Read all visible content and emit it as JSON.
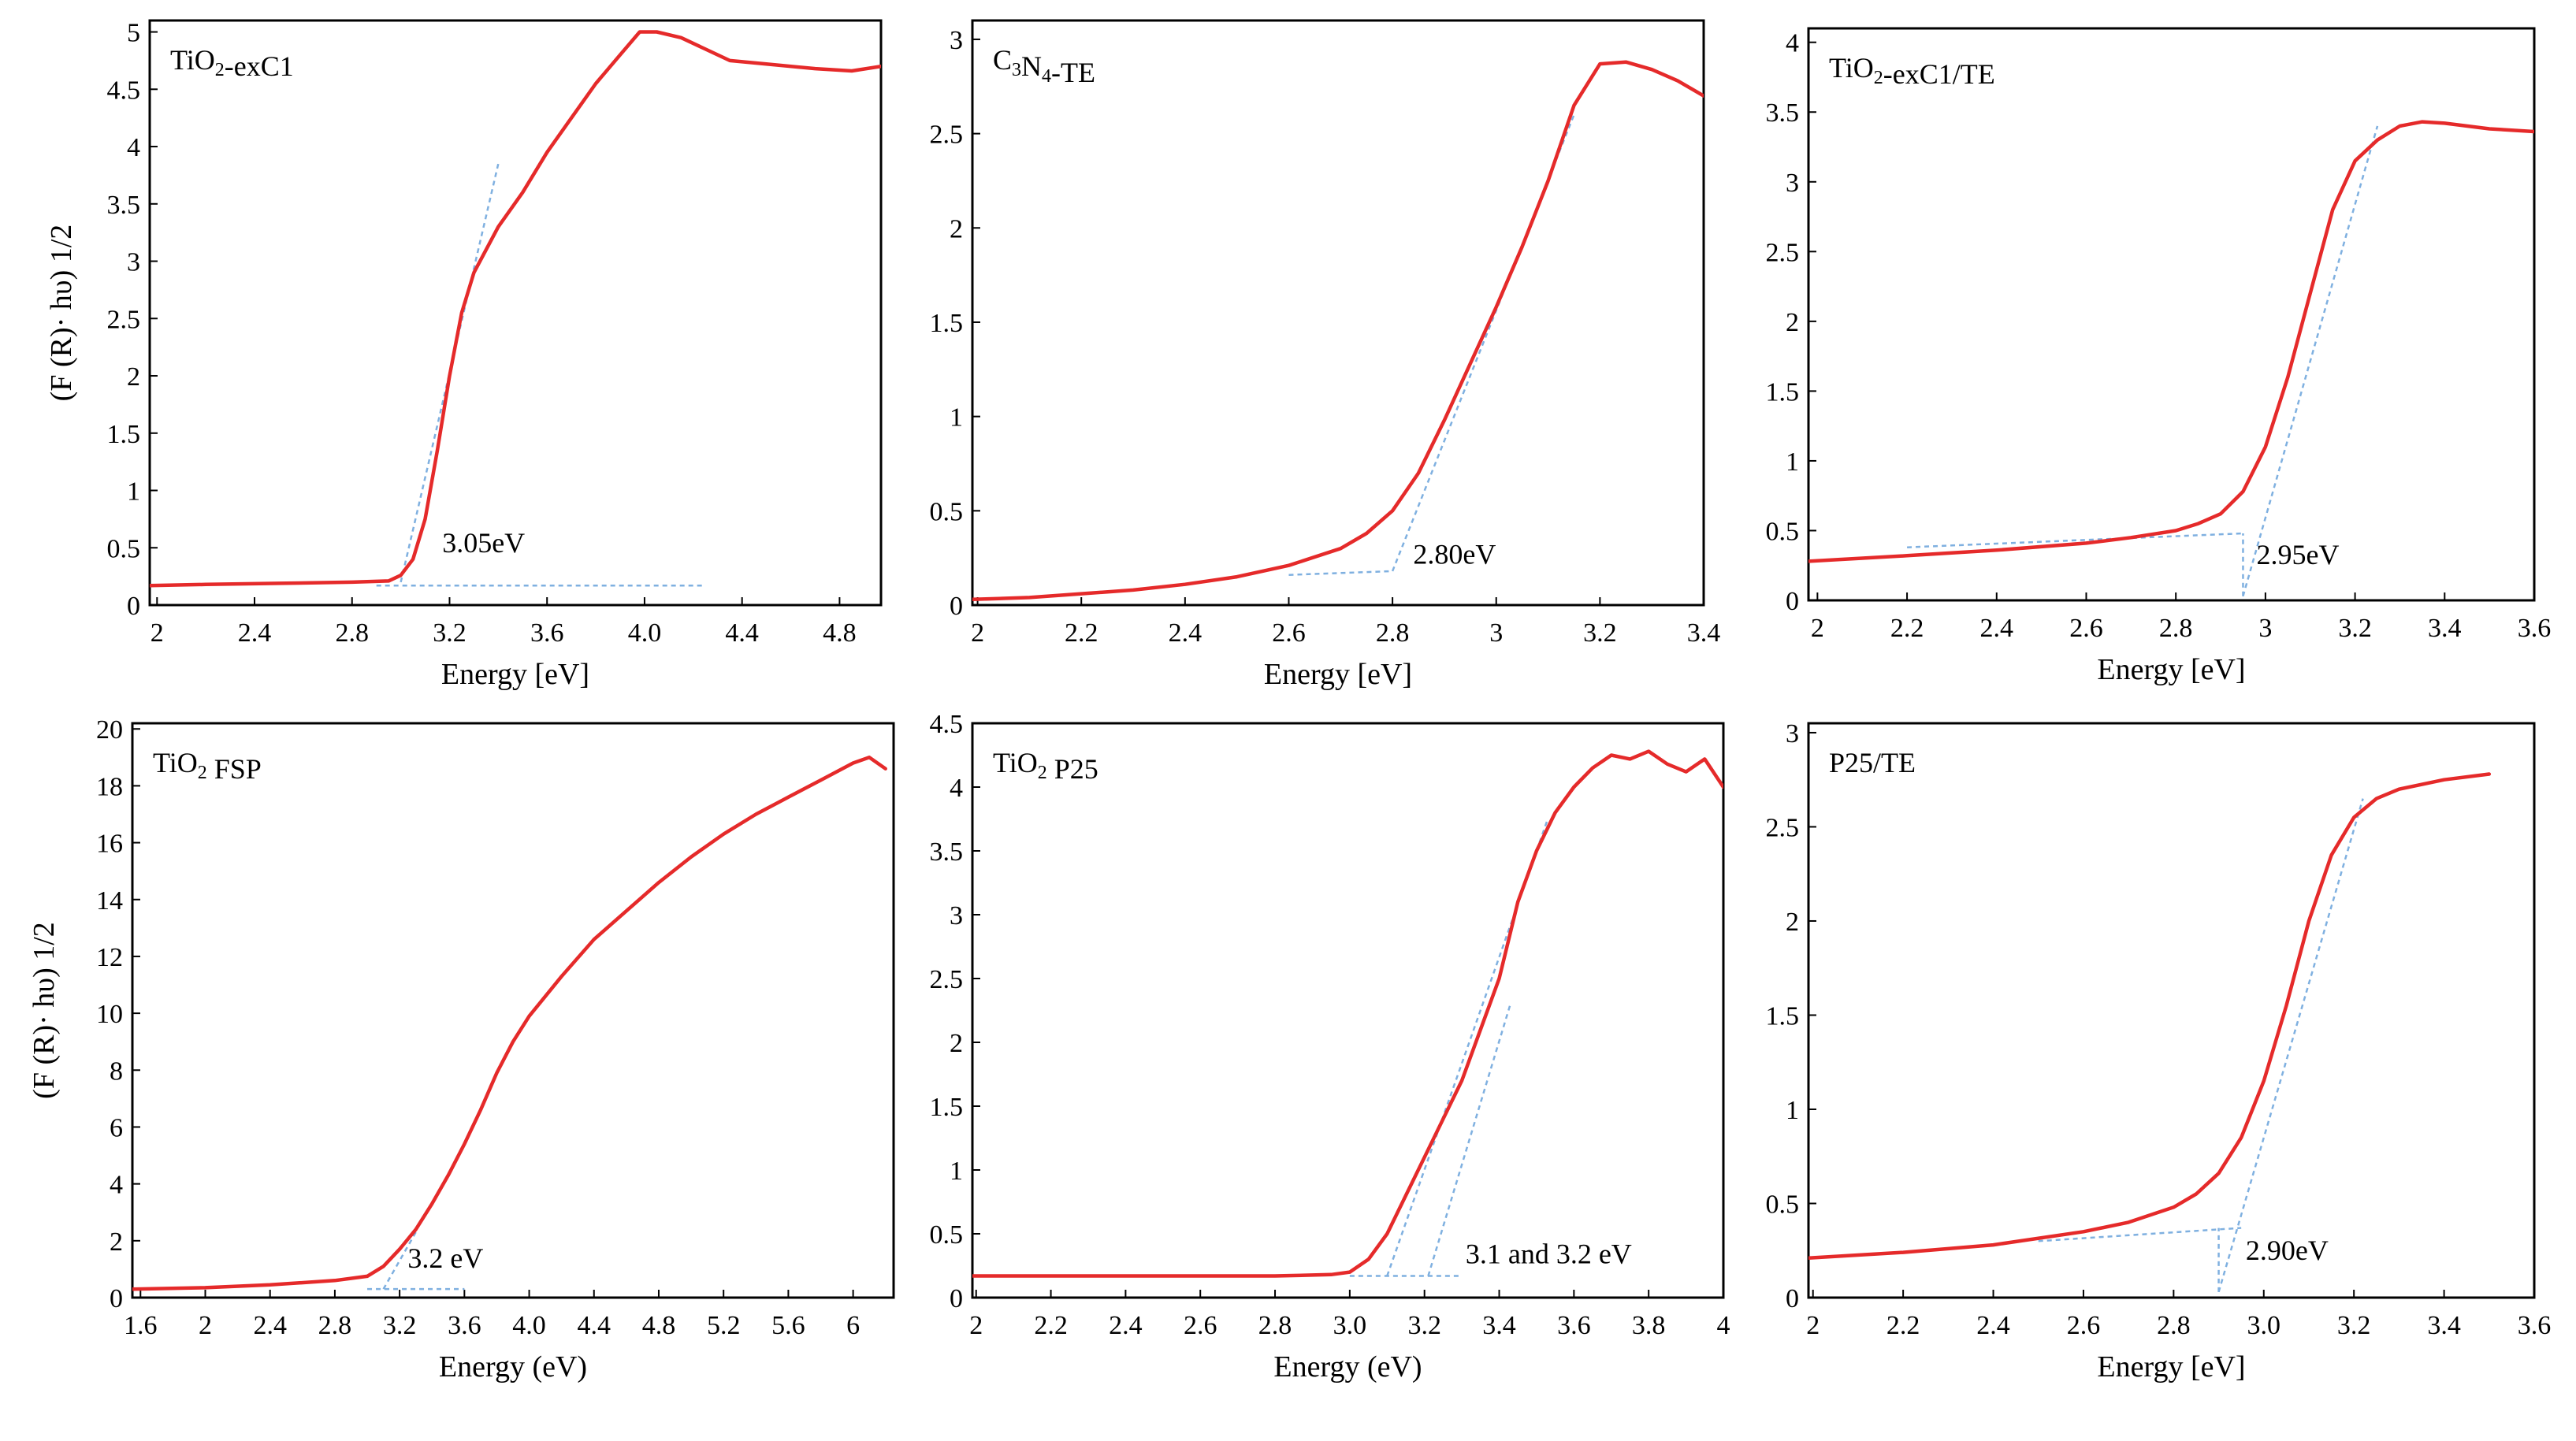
{
  "colors": {
    "curve": "#e52a2a",
    "guide": "#7fb0e0",
    "axes": "#000000"
  },
  "chart_data": [
    {
      "type": "line",
      "title": "TiO2-exC1",
      "title_parts": [
        {
          "t": "TiO"
        },
        {
          "t": "2",
          "sub": true
        },
        {
          "t": "-exC1"
        }
      ],
      "xlabel": "Energy [eV]",
      "ylabel": "(F (R)· hυ) 1/2",
      "xlim": [
        1.97,
        4.97
      ],
      "ylim": [
        0,
        5.1
      ],
      "xticks": [
        2,
        2.4,
        2.8,
        3.2,
        3.6,
        4.0,
        4.4,
        4.8
      ],
      "xtick_labels": [
        "2",
        "2.4",
        "2.8",
        "3.2",
        "3.6",
        "4.0",
        "4.4",
        "4.8"
      ],
      "yticks": [
        0,
        0.5,
        1,
        1.5,
        2,
        2.5,
        3,
        3.5,
        4,
        4.5,
        5
      ],
      "ytick_labels": [
        "0",
        "0.5",
        "1",
        "1.5",
        "2",
        "2.5",
        "3",
        "3.5",
        "4",
        "4.5",
        "5"
      ],
      "series": [
        {
          "name": "TiO2-exC1",
          "x": [
            1.97,
            2.2,
            2.5,
            2.8,
            2.95,
            3.0,
            3.05,
            3.1,
            3.15,
            3.2,
            3.25,
            3.3,
            3.4,
            3.5,
            3.6,
            3.7,
            3.8,
            3.9,
            3.98,
            4.05,
            4.15,
            4.25,
            4.35,
            4.5,
            4.7,
            4.85,
            4.97
          ],
          "y": [
            0.17,
            0.18,
            0.19,
            0.2,
            0.21,
            0.26,
            0.4,
            0.75,
            1.35,
            2.0,
            2.55,
            2.9,
            3.3,
            3.6,
            3.95,
            4.25,
            4.55,
            4.8,
            5.0,
            5.0,
            4.95,
            4.85,
            4.75,
            4.72,
            4.68,
            4.66,
            4.7
          ]
        }
      ],
      "guides": [
        {
          "x": [
            3.0,
            3.4
          ],
          "y": [
            0.2,
            3.85
          ]
        },
        {
          "x": [
            2.9,
            4.25
          ],
          "y": [
            0.17,
            0.17
          ]
        }
      ],
      "annotations": [
        {
          "text": "3.05eV",
          "x": 3.17,
          "y": 0.46
        }
      ]
    },
    {
      "type": "line",
      "title": "C3N4-TE",
      "title_parts": [
        {
          "t": "C"
        },
        {
          "t": "3",
          "sub": true
        },
        {
          "t": "N"
        },
        {
          "t": "4",
          "sub": true
        },
        {
          "t": "-TE"
        }
      ],
      "xlabel": "Energy [eV]",
      "ylabel": "",
      "xlim": [
        1.99,
        3.4
      ],
      "ylim": [
        0,
        3.1
      ],
      "xticks": [
        2,
        2.2,
        2.4,
        2.6,
        2.8,
        3,
        3.2,
        3.4
      ],
      "xtick_labels": [
        "2",
        "2.2",
        "2.4",
        "2.6",
        "2.8",
        "3",
        "3.2",
        "3.4"
      ],
      "yticks": [
        0,
        0.5,
        1,
        1.5,
        2,
        2.5,
        3
      ],
      "ytick_labels": [
        "0",
        "0.5",
        "1",
        "1.5",
        "2",
        "2.5",
        "3"
      ],
      "series": [
        {
          "name": "C3N4-TE",
          "x": [
            1.99,
            2.1,
            2.2,
            2.3,
            2.4,
            2.5,
            2.6,
            2.7,
            2.75,
            2.8,
            2.85,
            2.9,
            2.95,
            3.0,
            3.05,
            3.1,
            3.15,
            3.2,
            3.25,
            3.3,
            3.35,
            3.4
          ],
          "y": [
            0.03,
            0.04,
            0.06,
            0.08,
            0.11,
            0.15,
            0.21,
            0.3,
            0.38,
            0.5,
            0.7,
            0.98,
            1.28,
            1.58,
            1.9,
            2.25,
            2.65,
            2.87,
            2.88,
            2.84,
            2.78,
            2.7
          ]
        }
      ],
      "guides": [
        {
          "x": [
            2.6,
            2.8
          ],
          "y": [
            0.16,
            0.18
          ]
        },
        {
          "x": [
            2.8,
            3.15
          ],
          "y": [
            0.18,
            2.6
          ]
        }
      ],
      "annotations": [
        {
          "text": "2.80eV",
          "x": 2.84,
          "y": 0.22
        }
      ]
    },
    {
      "type": "line",
      "title": "TiO2-exC1/TE",
      "title_parts": [
        {
          "t": "TiO"
        },
        {
          "t": "2",
          "sub": true
        },
        {
          "t": "-exC1/TE"
        }
      ],
      "xlabel": "Energy [eV]",
      "ylabel": "",
      "xlim": [
        1.98,
        3.6
      ],
      "ylim": [
        0,
        4.1
      ],
      "xticks": [
        2,
        2.2,
        2.4,
        2.6,
        2.8,
        3,
        3.2,
        3.4,
        3.6
      ],
      "xtick_labels": [
        "2",
        "2.2",
        "2.4",
        "2.6",
        "2.8",
        "3",
        "3.2",
        "3.4",
        "3.6"
      ],
      "yticks": [
        0,
        0.5,
        1,
        1.5,
        2,
        2.5,
        3,
        3.5,
        4
      ],
      "ytick_labels": [
        "0",
        "0.5",
        "1",
        "1.5",
        "2",
        "2.5",
        "3",
        "3.5",
        "4"
      ],
      "series": [
        {
          "name": "TiO2-exC1/TE",
          "x": [
            1.98,
            2.2,
            2.4,
            2.6,
            2.7,
            2.8,
            2.85,
            2.9,
            2.95,
            3.0,
            3.05,
            3.1,
            3.15,
            3.2,
            3.25,
            3.3,
            3.35,
            3.4,
            3.5,
            3.6
          ],
          "y": [
            0.28,
            0.32,
            0.36,
            0.41,
            0.45,
            0.5,
            0.55,
            0.62,
            0.78,
            1.1,
            1.6,
            2.2,
            2.8,
            3.15,
            3.3,
            3.4,
            3.43,
            3.42,
            3.38,
            3.36
          ]
        }
      ],
      "guides": [
        {
          "x": [
            2.2,
            2.95
          ],
          "y": [
            0.38,
            0.48
          ]
        },
        {
          "x": [
            2.95,
            3.25
          ],
          "y": [
            0.03,
            3.4
          ]
        },
        {
          "x": [
            2.95,
            2.95
          ],
          "y": [
            0.03,
            0.48
          ]
        }
      ],
      "annotations": [
        {
          "text": "2.95eV",
          "x": 2.98,
          "y": 0.26
        }
      ]
    },
    {
      "type": "line",
      "title": "TiO2 FSP",
      "title_parts": [
        {
          "t": "TiO"
        },
        {
          "t": "2",
          "sub": true
        },
        {
          "t": " FSP"
        }
      ],
      "xlabel": "Energy (eV)",
      "ylabel": "(F (R)· hυ) 1/2",
      "xlim": [
        1.55,
        6.25
      ],
      "ylim": [
        0,
        20.2
      ],
      "xticks": [
        1.6,
        2.0,
        2.4,
        2.8,
        3.2,
        3.6,
        4.0,
        4.4,
        4.8,
        5.2,
        5.6,
        6
      ],
      "xtick_labels": [
        "1.6",
        "2",
        "2.4",
        "2.8",
        "3.2",
        "3.6",
        "4.0",
        "4.4",
        "4.8",
        "5.2",
        "5.6",
        "6"
      ],
      "yticks": [
        0,
        2,
        4,
        6,
        8,
        10,
        12,
        14,
        16,
        18,
        20
      ],
      "ytick_labels": [
        "0",
        "2",
        "4",
        "6",
        "8",
        "10",
        "12",
        "14",
        "16",
        "18",
        "20"
      ],
      "series": [
        {
          "name": "TiO2 FSP",
          "x": [
            1.55,
            2.0,
            2.4,
            2.8,
            3.0,
            3.1,
            3.2,
            3.3,
            3.4,
            3.5,
            3.6,
            3.7,
            3.8,
            3.9,
            4.0,
            4.2,
            4.4,
            4.6,
            4.8,
            5.0,
            5.2,
            5.4,
            5.6,
            5.8,
            6.0,
            6.1,
            6.2
          ],
          "y": [
            0.3,
            0.35,
            0.45,
            0.6,
            0.75,
            1.1,
            1.7,
            2.4,
            3.3,
            4.3,
            5.4,
            6.6,
            7.9,
            9.0,
            9.9,
            11.3,
            12.6,
            13.6,
            14.6,
            15.5,
            16.3,
            17.0,
            17.6,
            18.2,
            18.8,
            19.0,
            18.6
          ]
        }
      ],
      "guides": [
        {
          "x": [
            3.0,
            3.6
          ],
          "y": [
            0.3,
            0.3
          ]
        },
        {
          "x": [
            3.1,
            3.3
          ],
          "y": [
            0.3,
            2.3
          ]
        }
      ],
      "annotations": [
        {
          "text": "3.2 eV",
          "x": 3.25,
          "y": 1.05
        }
      ]
    },
    {
      "type": "line",
      "title": "TiO2 P25",
      "title_parts": [
        {
          "t": "TiO"
        },
        {
          "t": "2",
          "sub": true
        },
        {
          "t": " P25"
        }
      ],
      "xlabel": "Energy (eV)",
      "ylabel": "",
      "xlim": [
        1.99,
        4.0
      ],
      "ylim": [
        0,
        4.5
      ],
      "xticks": [
        2,
        2.2,
        2.4,
        2.6,
        2.8,
        3.0,
        3.2,
        3.4,
        3.6,
        3.8,
        4
      ],
      "xtick_labels": [
        "2",
        "2.2",
        "2.4",
        "2.6",
        "2.8",
        "3.0",
        "3.2",
        "3.4",
        "3.6",
        "3.8",
        "4"
      ],
      "yticks": [
        0,
        0.5,
        1,
        1.5,
        2,
        2.5,
        3,
        3.5,
        4,
        4.5
      ],
      "ytick_labels": [
        "0",
        "0.5",
        "1",
        "1.5",
        "2",
        "2.5",
        "3",
        "3.5",
        "4",
        "4.5"
      ],
      "series": [
        {
          "name": "TiO2 P25",
          "x": [
            1.99,
            2.2,
            2.5,
            2.8,
            2.95,
            3.0,
            3.05,
            3.1,
            3.15,
            3.2,
            3.25,
            3.3,
            3.35,
            3.4,
            3.45,
            3.5,
            3.55,
            3.6,
            3.65,
            3.7,
            3.75,
            3.8,
            3.85,
            3.9,
            3.95,
            4.0
          ],
          "y": [
            0.17,
            0.17,
            0.17,
            0.17,
            0.18,
            0.2,
            0.3,
            0.5,
            0.8,
            1.1,
            1.4,
            1.7,
            2.1,
            2.5,
            3.1,
            3.5,
            3.8,
            4.0,
            4.15,
            4.25,
            4.22,
            4.28,
            4.18,
            4.12,
            4.22,
            4.0
          ]
        }
      ],
      "guides": [
        {
          "x": [
            3.0,
            3.3
          ],
          "y": [
            0.17,
            0.17
          ]
        },
        {
          "x": [
            3.21,
            3.43
          ],
          "y": [
            0.17,
            2.3
          ]
        },
        {
          "x": [
            3.1,
            3.53
          ],
          "y": [
            0.17,
            3.75
          ]
        }
      ],
      "annotations": [
        {
          "text": "3.1 and 3.2 eV",
          "x": 3.31,
          "y": 0.27
        }
      ]
    },
    {
      "type": "line",
      "title": "P25/TE",
      "title_parts": [
        {
          "t": "P25/TE"
        }
      ],
      "xlabel": "Energy [eV]",
      "ylabel": "",
      "xlim": [
        1.99,
        3.6
      ],
      "ylim": [
        0,
        3.05
      ],
      "xticks": [
        2,
        2.2,
        2.4,
        2.6,
        2.8,
        3.0,
        3.2,
        3.4,
        3.6
      ],
      "xtick_labels": [
        "2",
        "2.2",
        "2.4",
        "2.6",
        "2.8",
        "3.0",
        "3.2",
        "3.4",
        "3.6"
      ],
      "yticks": [
        0,
        0.5,
        1,
        1.5,
        2,
        2.5,
        3
      ],
      "ytick_labels": [
        "0",
        "0.5",
        "1",
        "1.5",
        "2",
        "2.5",
        "3"
      ],
      "series": [
        {
          "name": "P25/TE",
          "x": [
            1.99,
            2.2,
            2.4,
            2.6,
            2.7,
            2.8,
            2.85,
            2.9,
            2.95,
            3.0,
            3.05,
            3.1,
            3.15,
            3.2,
            3.25,
            3.3,
            3.4,
            3.5
          ],
          "y": [
            0.21,
            0.24,
            0.28,
            0.35,
            0.4,
            0.48,
            0.55,
            0.66,
            0.85,
            1.15,
            1.55,
            2.0,
            2.35,
            2.55,
            2.65,
            2.7,
            2.75,
            2.78
          ]
        }
      ],
      "guides": [
        {
          "x": [
            2.5,
            2.95
          ],
          "y": [
            0.3,
            0.37
          ]
        },
        {
          "x": [
            2.9,
            3.22
          ],
          "y": [
            0.03,
            2.65
          ]
        },
        {
          "x": [
            2.9,
            2.9
          ],
          "y": [
            0.03,
            0.37
          ]
        }
      ],
      "annotations": [
        {
          "text": "2.90eV",
          "x": 2.96,
          "y": 0.2
        }
      ]
    }
  ]
}
